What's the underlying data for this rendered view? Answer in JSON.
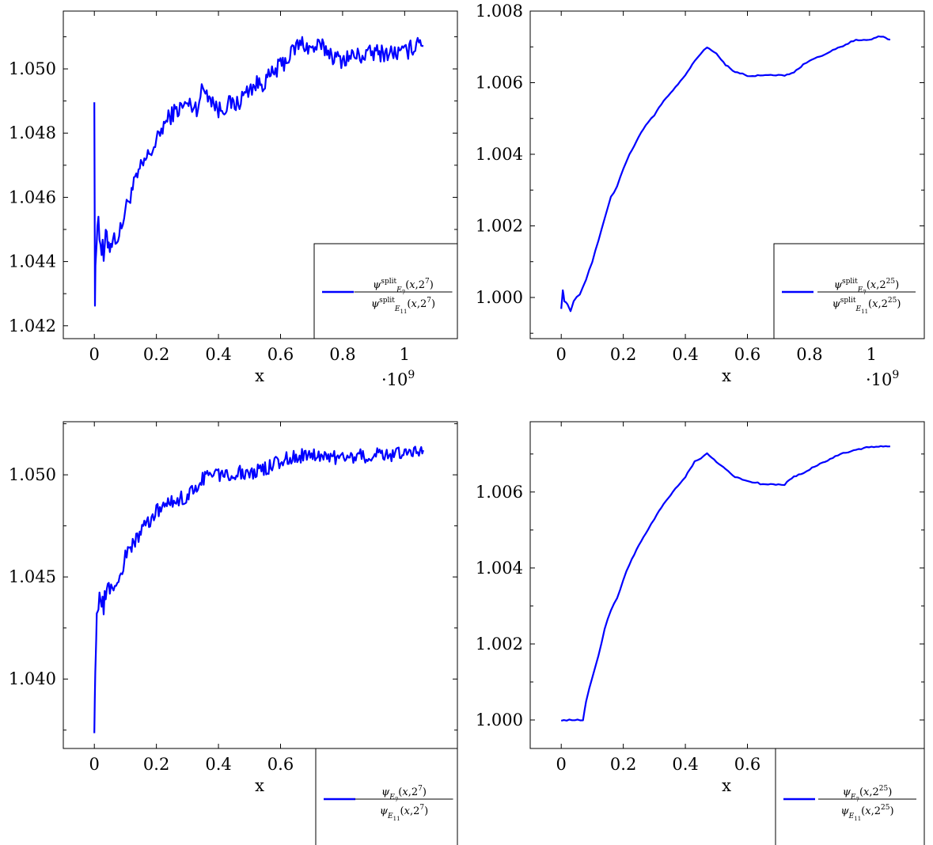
{
  "colors": {
    "series": "#0000ff",
    "axis": "#000000",
    "background": "#ffffff"
  },
  "chart_data": [
    {
      "type": "line",
      "xlabel": "x",
      "ylabel": "",
      "x_scale_label": "·10^9",
      "x_ticks": [
        0,
        0.2,
        0.4,
        0.6,
        0.8,
        1
      ],
      "y_ticks": [
        1.042,
        1.044,
        1.046,
        1.048,
        1.05
      ],
      "y_tick_labels": [
        "1.042",
        "1.044",
        "1.046",
        "1.048",
        "1.050"
      ],
      "xlim": [
        -0.1,
        1.17
      ],
      "ylim": [
        1.0416,
        1.0518
      ],
      "grid": false,
      "legend_placement": "bottom-right",
      "series": [
        {
          "name": "ψ^split_{E7}(x,2^7) / ψ^split_{E11}(x,2^7)",
          "noisy": true,
          "x": [
            0,
            0.002,
            0.005,
            0.01,
            0.02,
            0.03,
            0.04,
            0.05,
            0.06,
            0.08,
            0.1,
            0.12,
            0.15,
            0.18,
            0.2,
            0.22,
            0.25,
            0.28,
            0.3,
            0.33,
            0.35,
            0.37,
            0.4,
            0.43,
            0.46,
            0.5,
            0.52,
            0.55,
            0.58,
            0.6,
            0.63,
            0.65,
            0.67,
            0.7,
            0.72,
            0.75,
            0.78,
            0.8,
            0.83,
            0.86,
            0.9,
            0.93,
            0.96,
            1.0,
            1.03,
            1.05,
            1.06
          ],
          "y": [
            1.0494,
            1.0427,
            1.0442,
            1.0455,
            1.0446,
            1.0441,
            1.0448,
            1.0445,
            1.0447,
            1.0448,
            1.0456,
            1.0462,
            1.0469,
            1.0474,
            1.0477,
            1.0482,
            1.0486,
            1.0488,
            1.0489,
            1.0488,
            1.0494,
            1.0492,
            1.0487,
            1.0489,
            1.0489,
            1.0494,
            1.0495,
            1.0496,
            1.0499,
            1.0501,
            1.0504,
            1.0507,
            1.0508,
            1.0506,
            1.0507,
            1.0506,
            1.0503,
            1.0503,
            1.0504,
            1.0504,
            1.0505,
            1.0505,
            1.0505,
            1.0505,
            1.0507,
            1.051,
            1.0507
          ]
        }
      ]
    },
    {
      "type": "line",
      "xlabel": "x",
      "ylabel": "",
      "x_scale_label": "·10^9",
      "x_ticks": [
        0,
        0.2,
        0.4,
        0.6,
        0.8,
        1
      ],
      "y_ticks": [
        1.0,
        1.002,
        1.004,
        1.006,
        1.008
      ],
      "y_tick_labels": [
        "1.000",
        "1.002",
        "1.004",
        "1.006",
        "1.008"
      ],
      "xlim": [
        -0.1,
        1.17
      ],
      "ylim": [
        0.99885,
        1.008
      ],
      "grid": false,
      "legend_placement": "bottom-right",
      "series": [
        {
          "name": "ψ^split_{E7}(x,2^25) / ψ^split_{E11}(x,2^25)",
          "noisy": false,
          "x": [
            0,
            0.005,
            0.01,
            0.02,
            0.03,
            0.04,
            0.06,
            0.08,
            0.1,
            0.12,
            0.14,
            0.16,
            0.18,
            0.2,
            0.22,
            0.25,
            0.28,
            0.3,
            0.33,
            0.36,
            0.4,
            0.43,
            0.45,
            0.47,
            0.5,
            0.53,
            0.56,
            0.6,
            0.65,
            0.7,
            0.72,
            0.75,
            0.78,
            0.8,
            0.85,
            0.9,
            0.95,
            1.0,
            1.03,
            1.06
          ],
          "y": [
            0.9997,
            1.0002,
            0.9999,
            0.9998,
            0.9996,
            0.9999,
            1.0001,
            1.0005,
            1.001,
            1.0016,
            1.0022,
            1.0028,
            1.0031,
            1.0036,
            1.004,
            1.0045,
            1.0049,
            1.0051,
            1.0055,
            1.0058,
            1.0062,
            1.0066,
            1.0068,
            1.007,
            1.0068,
            1.0065,
            1.0063,
            1.0062,
            1.0062,
            1.0062,
            1.0062,
            1.0063,
            1.0065,
            1.0066,
            1.0068,
            1.007,
            1.0072,
            1.0072,
            1.0073,
            1.0072
          ]
        }
      ]
    },
    {
      "type": "line",
      "xlabel": "x",
      "ylabel": "",
      "x_ticks": [
        0,
        0.2,
        0.4,
        0.6
      ],
      "y_ticks": [
        1.04,
        1.045,
        1.05
      ],
      "y_tick_labels": [
        "1.040",
        "1.045",
        "1.050"
      ],
      "xlim": [
        -0.1,
        1.17
      ],
      "ylim": [
        1.0366,
        1.0526
      ],
      "grid": false,
      "legend_placement": "below-right",
      "series": [
        {
          "name": "ψ_{E7}(x,2^7) / ψ_{E11}(x,2^7)",
          "noisy": true,
          "x": [
            0,
            0.003,
            0.006,
            0.01,
            0.02,
            0.03,
            0.04,
            0.05,
            0.07,
            0.09,
            0.1,
            0.12,
            0.15,
            0.18,
            0.2,
            0.23,
            0.26,
            0.3,
            0.33,
            0.36,
            0.4,
            0.45,
            0.5,
            0.55,
            0.6,
            0.65,
            0.7,
            0.75,
            0.8,
            0.85,
            0.9,
            0.95,
            1.0,
            1.03,
            1.05,
            1.06
          ],
          "y": [
            1.0379,
            1.04,
            1.042,
            1.0435,
            1.044,
            1.0433,
            1.0447,
            1.0444,
            1.0446,
            1.0452,
            1.046,
            1.0465,
            1.0472,
            1.0478,
            1.0482,
            1.0485,
            1.0487,
            1.049,
            1.0494,
            1.05,
            1.05,
            1.0501,
            1.0501,
            1.0503,
            1.0507,
            1.0509,
            1.051,
            1.0509,
            1.0508,
            1.0509,
            1.051,
            1.051,
            1.051,
            1.0512,
            1.0513,
            1.0512
          ]
        }
      ]
    },
    {
      "type": "line",
      "xlabel": "x",
      "ylabel": "",
      "x_ticks": [
        0,
        0.2,
        0.4,
        0.6
      ],
      "y_ticks": [
        1.0,
        1.002,
        1.004,
        1.006
      ],
      "y_tick_labels": [
        "1.000",
        "1.002",
        "1.004",
        "1.006"
      ],
      "xlim": [
        -0.1,
        1.17
      ],
      "ylim": [
        0.99925,
        1.00785
      ],
      "grid": false,
      "legend_placement": "below-right",
      "series": [
        {
          "name": "ψ_{E7}(x,2^25) / ψ_{E11}(x,2^25)",
          "noisy": false,
          "x": [
            0,
            0.07,
            0.08,
            0.1,
            0.12,
            0.14,
            0.16,
            0.18,
            0.2,
            0.22,
            0.25,
            0.28,
            0.3,
            0.33,
            0.36,
            0.4,
            0.43,
            0.45,
            0.47,
            0.5,
            0.53,
            0.56,
            0.6,
            0.65,
            0.7,
            0.72,
            0.75,
            0.78,
            0.8,
            0.85,
            0.9,
            0.95,
            1.0,
            1.03,
            1.06
          ],
          "y": [
            1.0,
            1.0,
            1.0005,
            1.0011,
            1.0017,
            1.0024,
            1.0029,
            1.0032,
            1.0037,
            1.0041,
            1.0046,
            1.005,
            1.0053,
            1.0057,
            1.006,
            1.0064,
            1.0068,
            1.0069,
            1.007,
            1.0068,
            1.0066,
            1.0064,
            1.0063,
            1.0062,
            1.0062,
            1.0062,
            1.0064,
            1.0065,
            1.0066,
            1.0068,
            1.007,
            1.0071,
            1.0072,
            1.0072,
            1.0072
          ]
        }
      ]
    }
  ]
}
